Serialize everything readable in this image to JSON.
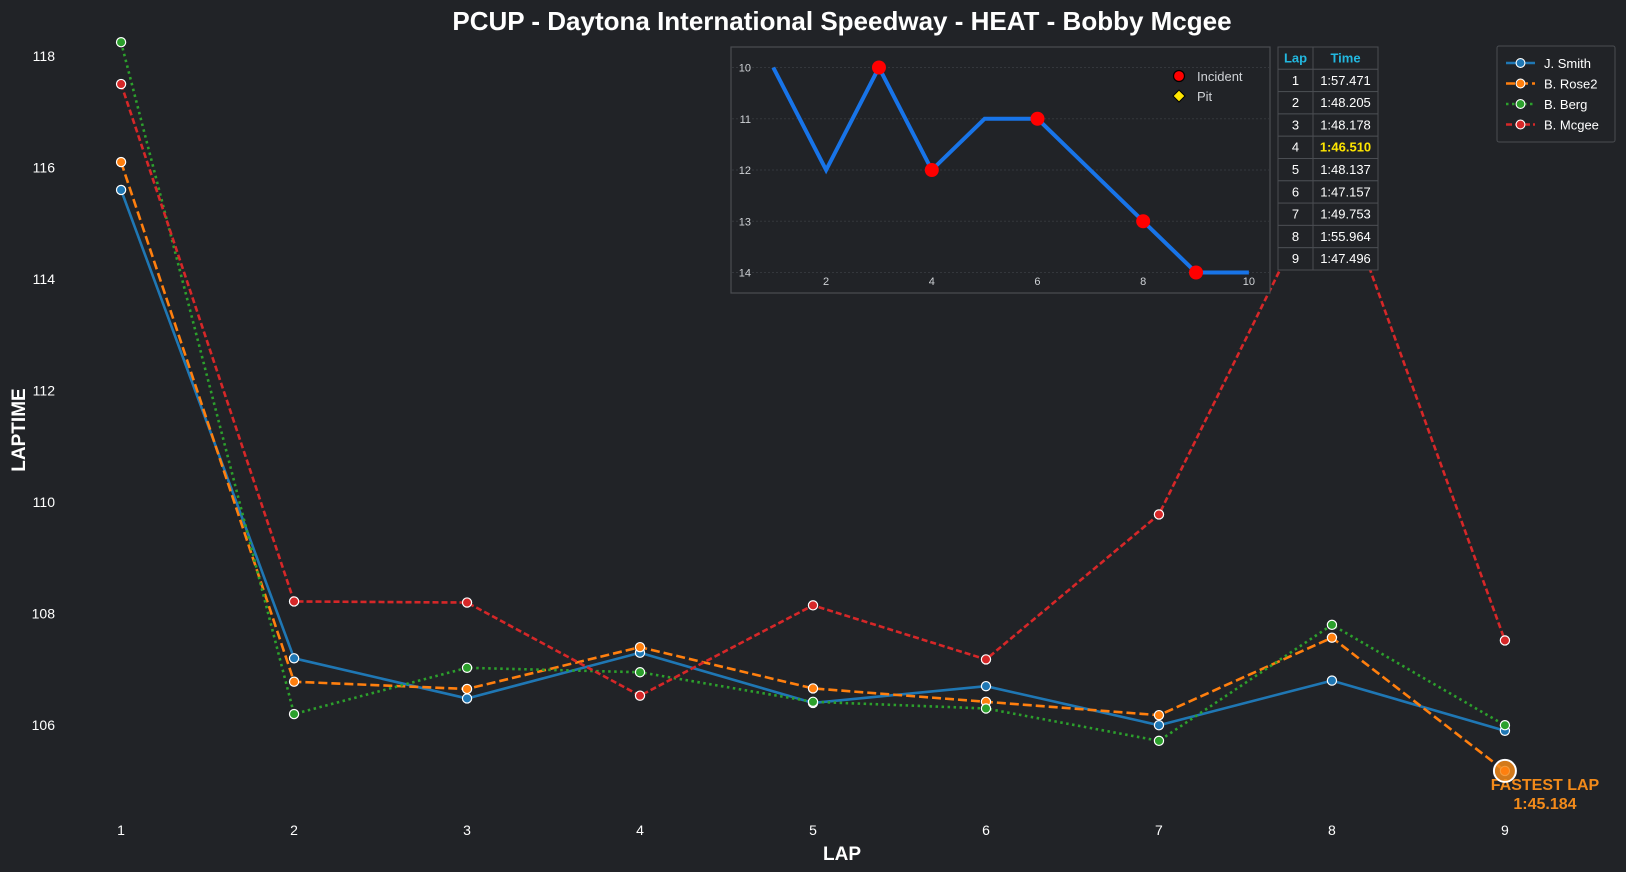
{
  "chart_data": [
    {
      "type": "line",
      "title": "PCUP - Daytona International Speedway - HEAT - Bobby Mcgee",
      "xlabel": "LAP",
      "ylabel": "LAPTIME",
      "x": [
        1,
        2,
        3,
        4,
        5,
        6,
        7,
        8,
        9
      ],
      "xlim": [
        0.3,
        9.7
      ],
      "ylim": [
        104.3,
        118.2
      ],
      "yticks": [
        106,
        108,
        110,
        112,
        114,
        116,
        118
      ],
      "grid": false,
      "legend_position": "top-right",
      "series": [
        {
          "name": "J. Smith",
          "color": "#1f77b4",
          "style": "solid",
          "values": [
            115.6,
            107.2,
            106.48,
            107.3,
            106.4,
            106.7,
            106.0,
            106.8,
            105.9
          ]
        },
        {
          "name": "B. Rose2",
          "color": "#ff7f0e",
          "style": "dashed",
          "values": [
            116.1,
            106.78,
            106.65,
            107.4,
            106.66,
            106.42,
            106.18,
            107.57,
            105.18
          ]
        },
        {
          "name": "B. Berg",
          "color": "#2ca02c",
          "style": "dotted",
          "values": [
            118.25,
            106.2,
            107.03,
            106.95,
            106.42,
            106.3,
            105.72,
            107.8,
            106.0
          ]
        },
        {
          "name": "B. Mcgee",
          "color": "#d62728",
          "style": "dashed-fine",
          "values": [
            117.5,
            108.22,
            108.2,
            106.53,
            108.15,
            107.18,
            109.78,
            116.05,
            107.52
          ]
        }
      ],
      "annotation": {
        "label": "FASTEST LAP",
        "value": "1:45.184",
        "series": "B. Rose2",
        "lap": 9,
        "laptime": 105.18
      }
    },
    {
      "type": "line",
      "title": "",
      "x": [
        1,
        2,
        3,
        4,
        5,
        6,
        7,
        8,
        9,
        10
      ],
      "values": [
        10,
        12,
        10,
        12,
        11,
        11,
        12,
        13,
        14,
        14
      ],
      "xticks": [
        2,
        4,
        6,
        8,
        10
      ],
      "yticks": [
        10,
        11,
        12,
        13,
        14
      ],
      "xlim": [
        0.2,
        10.4
      ],
      "ylim": [
        14.4,
        9.6
      ],
      "y_inverted": true,
      "color": "#1874e8",
      "incident_laps": [
        3,
        4,
        6,
        8,
        9
      ],
      "pit_laps": [],
      "legend": [
        {
          "label": "Incident",
          "marker": "circle",
          "color": "#ff0000"
        },
        {
          "label": "Pit",
          "marker": "diamond",
          "color": "#ffe600"
        }
      ]
    }
  ],
  "lap_table": {
    "headers": [
      "Lap",
      "Time"
    ],
    "rows": [
      [
        "1",
        "1:57.471"
      ],
      [
        "2",
        "1:48.205"
      ],
      [
        "3",
        "1:48.178"
      ],
      [
        "4",
        "1:46.510"
      ],
      [
        "5",
        "1:48.137"
      ],
      [
        "6",
        "1:47.157"
      ],
      [
        "7",
        "1:49.753"
      ],
      [
        "8",
        "1:55.964"
      ],
      [
        "9",
        "1:47.496"
      ]
    ],
    "highlight_row": 3,
    "highlight_color": "#ffe600"
  },
  "colors": {
    "background": "#212327",
    "inset_border": "#4a4d52",
    "table_border": "#4a4d52"
  }
}
